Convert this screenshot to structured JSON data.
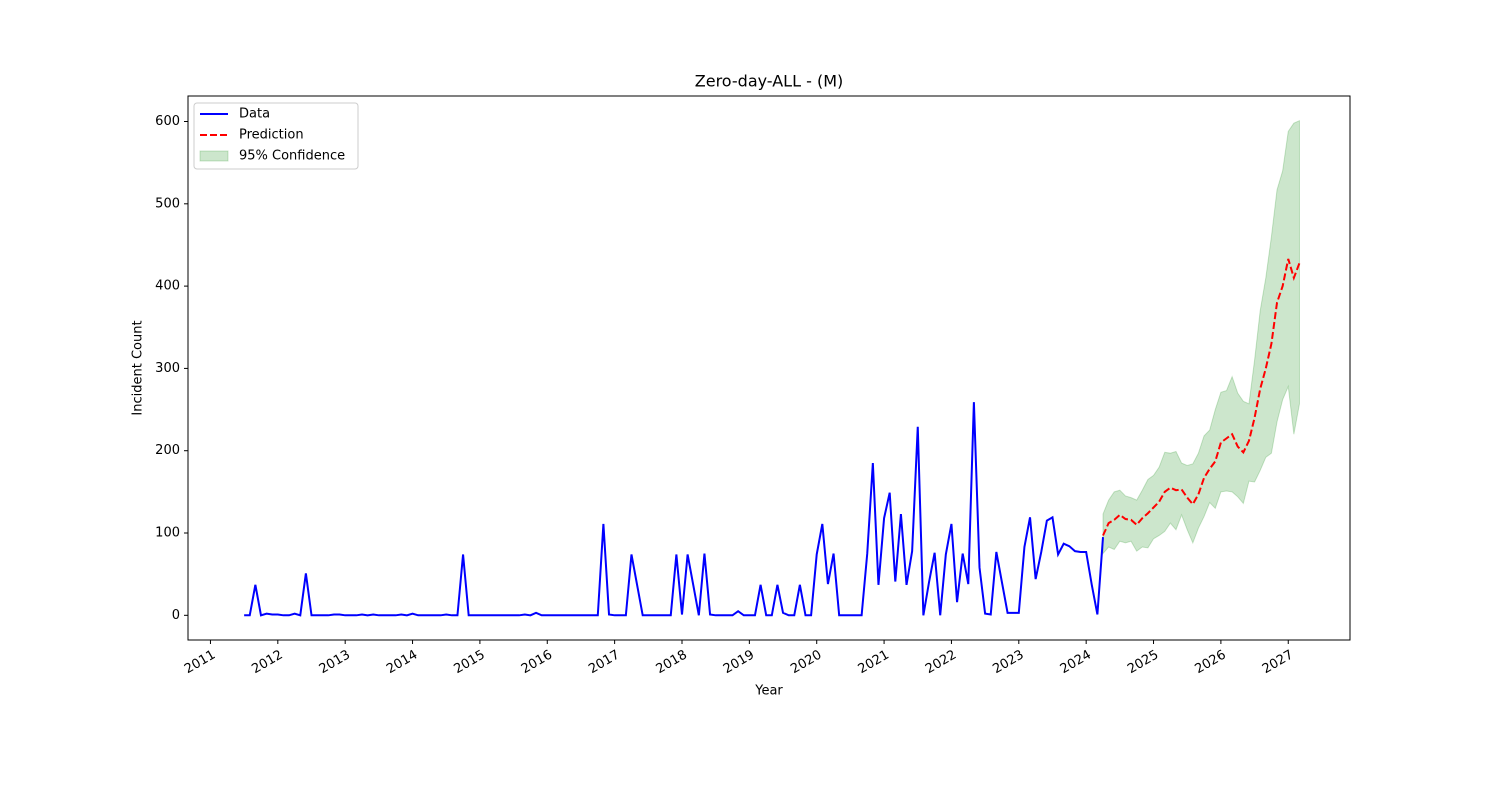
{
  "chart_data": {
    "type": "line",
    "title": "Zero-day-ALL - (M)",
    "x_label": "Year",
    "y_label": "Incident Count",
    "xlim": [
      "2010-09",
      "2027-12"
    ],
    "ylim": [
      -30,
      631
    ],
    "xticks": [
      {
        "value": "2011-01",
        "label": "2011"
      },
      {
        "value": "2012-01",
        "label": "2012"
      },
      {
        "value": "2013-01",
        "label": "2013"
      },
      {
        "value": "2014-01",
        "label": "2014"
      },
      {
        "value": "2015-01",
        "label": "2015"
      },
      {
        "value": "2016-01",
        "label": "2016"
      },
      {
        "value": "2017-01",
        "label": "2017"
      },
      {
        "value": "2018-01",
        "label": "2018"
      },
      {
        "value": "2019-01",
        "label": "2019"
      },
      {
        "value": "2020-01",
        "label": "2020"
      },
      {
        "value": "2021-01",
        "label": "2021"
      },
      {
        "value": "2022-01",
        "label": "2022"
      },
      {
        "value": "2023-01",
        "label": "2023"
      },
      {
        "value": "2024-01",
        "label": "2024"
      },
      {
        "value": "2025-01",
        "label": "2025"
      },
      {
        "value": "2026-01",
        "label": "2026"
      },
      {
        "value": "2027-01",
        "label": "2027"
      }
    ],
    "yticks": [
      0,
      100,
      200,
      300,
      400,
      500,
      600
    ],
    "grid": false,
    "legend": "upper left",
    "series": [
      {
        "name": "Data",
        "color": "#0000ff",
        "style": "solid",
        "x": [
          "2011-07",
          "2011-08",
          "2011-09",
          "2011-10",
          "2011-11",
          "2011-12",
          "2012-01",
          "2012-02",
          "2012-03",
          "2012-04",
          "2012-05",
          "2012-06",
          "2012-07",
          "2012-08",
          "2012-09",
          "2012-10",
          "2012-11",
          "2012-12",
          "2013-01",
          "2013-02",
          "2013-03",
          "2013-04",
          "2013-05",
          "2013-06",
          "2013-07",
          "2013-08",
          "2013-09",
          "2013-10",
          "2013-11",
          "2013-12",
          "2014-01",
          "2014-02",
          "2014-03",
          "2014-04",
          "2014-05",
          "2014-06",
          "2014-07",
          "2014-08",
          "2014-09",
          "2014-10",
          "2014-11",
          "2014-12",
          "2015-01",
          "2015-02",
          "2015-03",
          "2015-04",
          "2015-05",
          "2015-06",
          "2015-07",
          "2015-08",
          "2015-09",
          "2015-10",
          "2015-11",
          "2015-12",
          "2016-01",
          "2016-02",
          "2016-03",
          "2016-04",
          "2016-05",
          "2016-06",
          "2016-07",
          "2016-08",
          "2016-09",
          "2016-10",
          "2016-11",
          "2016-12",
          "2017-01",
          "2017-02",
          "2017-03",
          "2017-04",
          "2017-05",
          "2017-06",
          "2017-07",
          "2017-08",
          "2017-09",
          "2017-10",
          "2017-11",
          "2017-12",
          "2018-01",
          "2018-02",
          "2018-03",
          "2018-04",
          "2018-05",
          "2018-06",
          "2018-07",
          "2018-08",
          "2018-09",
          "2018-10",
          "2018-11",
          "2018-12",
          "2019-01",
          "2019-02",
          "2019-03",
          "2019-04",
          "2019-05",
          "2019-06",
          "2019-07",
          "2019-08",
          "2019-09",
          "2019-10",
          "2019-11",
          "2019-12",
          "2020-01",
          "2020-02",
          "2020-03",
          "2020-04",
          "2020-05",
          "2020-06",
          "2020-07",
          "2020-08",
          "2020-09",
          "2020-10",
          "2020-11",
          "2020-12",
          "2021-01",
          "2021-02",
          "2021-03",
          "2021-04",
          "2021-05",
          "2021-06",
          "2021-07",
          "2021-08",
          "2021-09",
          "2021-10",
          "2021-11",
          "2021-12",
          "2022-01",
          "2022-02",
          "2022-03",
          "2022-04",
          "2022-05",
          "2022-06",
          "2022-07",
          "2022-08",
          "2022-09",
          "2022-10",
          "2022-11",
          "2022-12",
          "2023-01",
          "2023-02",
          "2023-03",
          "2023-04",
          "2023-05",
          "2023-06",
          "2023-07",
          "2023-08",
          "2023-09",
          "2023-10",
          "2023-11",
          "2023-12",
          "2024-01",
          "2024-02",
          "2024-03",
          "2024-04"
        ],
        "values": [
          0,
          0,
          37,
          0,
          2,
          1,
          1,
          0,
          0,
          2,
          0,
          51,
          0,
          0,
          0,
          0,
          1,
          1,
          0,
          0,
          0,
          1,
          0,
          1,
          0,
          0,
          0,
          0,
          1,
          0,
          2,
          0,
          0,
          0,
          0,
          0,
          1,
          0,
          0,
          74,
          0,
          0,
          0,
          0,
          0,
          0,
          0,
          0,
          0,
          0,
          1,
          0,
          3,
          0,
          0,
          0,
          0,
          0,
          0,
          0,
          0,
          0,
          0,
          0,
          111,
          1,
          0,
          0,
          0,
          74,
          37,
          0,
          0,
          0,
          0,
          0,
          0,
          74,
          1,
          74,
          37,
          0,
          75,
          1,
          0,
          0,
          0,
          0,
          5,
          0,
          0,
          0,
          37,
          0,
          0,
          37,
          3,
          0,
          0,
          37,
          0,
          0,
          74,
          111,
          38,
          75,
          0,
          0,
          0,
          0,
          0,
          75,
          185,
          37,
          118,
          149,
          41,
          123,
          37,
          78,
          229,
          0,
          40,
          76,
          0,
          74,
          111,
          16,
          75,
          38,
          259,
          58,
          2,
          1,
          77,
          40,
          3,
          3,
          3,
          83,
          119,
          44,
          77,
          115,
          119,
          74,
          87,
          84,
          78,
          77,
          77,
          37,
          1,
          95
        ]
      },
      {
        "name": "Prediction",
        "color": "#ff0000",
        "style": "dashed",
        "x": [
          "2024-04",
          "2024-05",
          "2024-06",
          "2024-07",
          "2024-08",
          "2024-09",
          "2024-10",
          "2024-11",
          "2024-12",
          "2025-01",
          "2025-02",
          "2025-03",
          "2025-04",
          "2025-05",
          "2025-06",
          "2025-07",
          "2025-08",
          "2025-09",
          "2025-10",
          "2025-11",
          "2025-12",
          "2026-01",
          "2026-02",
          "2026-03",
          "2026-04",
          "2026-05",
          "2026-06",
          "2026-07",
          "2026-08",
          "2026-09",
          "2026-10",
          "2026-11",
          "2026-12",
          "2027-01",
          "2027-02",
          "2027-03"
        ],
        "values": [
          97,
          112,
          116,
          122,
          117,
          116,
          110,
          118,
          124,
          131,
          138,
          150,
          155,
          152,
          153,
          143,
          135,
          147,
          167,
          178,
          187,
          210,
          215,
          220,
          205,
          198,
          212,
          240,
          275,
          300,
          330,
          380,
          400,
          433,
          410,
          428
        ]
      },
      {
        "name": "95% Confidence",
        "color": "green",
        "opacity": 0.2,
        "style": "band",
        "x": [
          "2024-04",
          "2024-05",
          "2024-06",
          "2024-07",
          "2024-08",
          "2024-09",
          "2024-10",
          "2024-11",
          "2024-12",
          "2025-01",
          "2025-02",
          "2025-03",
          "2025-04",
          "2025-05",
          "2025-06",
          "2025-07",
          "2025-08",
          "2025-09",
          "2025-10",
          "2025-11",
          "2025-12",
          "2026-01",
          "2026-02",
          "2026-03",
          "2026-04",
          "2026-05",
          "2026-06",
          "2026-07",
          "2026-08",
          "2026-09",
          "2026-10",
          "2026-11",
          "2026-12",
          "2027-01",
          "2027-02",
          "2027-03"
        ],
        "lower": [
          75,
          83,
          80,
          90,
          88,
          90,
          78,
          83,
          82,
          93,
          97,
          102,
          112,
          104,
          122,
          104,
          88,
          106,
          120,
          137,
          130,
          150,
          151,
          150,
          144,
          136,
          163,
          162,
          176,
          192,
          197,
          235,
          262,
          278,
          220,
          257
        ],
        "upper": [
          123,
          140,
          150,
          152,
          145,
          143,
          140,
          152,
          165,
          170,
          180,
          198,
          197,
          199,
          185,
          182,
          184,
          197,
          218,
          225,
          250,
          271,
          273,
          290,
          270,
          260,
          257,
          310,
          370,
          410,
          460,
          517,
          540,
          588,
          598,
          601
        ]
      }
    ]
  }
}
